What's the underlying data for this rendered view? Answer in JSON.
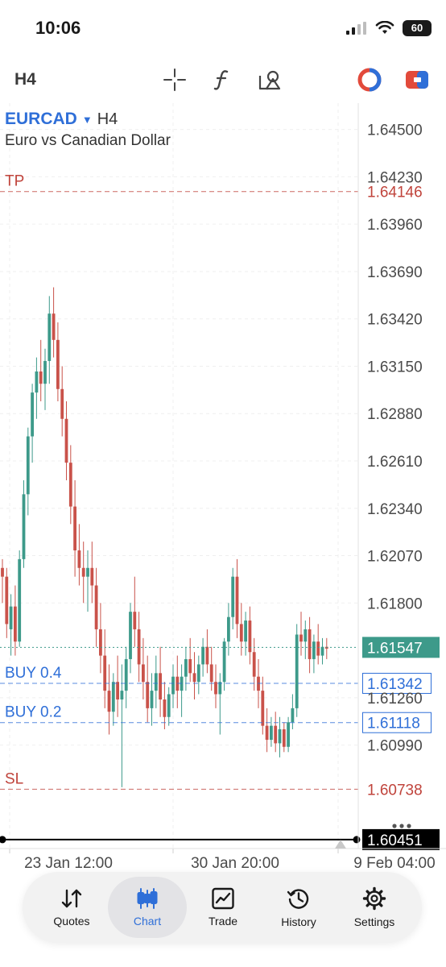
{
  "status_bar": {
    "time": "10:06",
    "battery": "60"
  },
  "toolbar": {
    "timeframe": "H4",
    "icons": [
      "crosshair-icon",
      "indicator-function-icon",
      "objects-icon",
      "signal-icon",
      "one-click-trading-icon"
    ]
  },
  "symbol": {
    "name": "EURCAD",
    "timeframe": "H4",
    "description": "Euro vs Canadian Dollar"
  },
  "chart_data": {
    "type": "candlestick",
    "ylim": [
      1.604,
      1.6465
    ],
    "price_ticks": [
      "1.64500",
      "1.64230",
      "1.63960",
      "1.63690",
      "1.63420",
      "1.63150",
      "1.62880",
      "1.62610",
      "1.62340",
      "1.62070",
      "1.61800",
      "1.61260",
      "1.60990"
    ],
    "x_ticks": [
      "23 Jan 12:00",
      "30 Jan 20:00",
      "9 Feb 04:00"
    ],
    "levels": [
      {
        "label": "TP",
        "price": "1.64146",
        "color": "#c0443c"
      },
      {
        "label": "",
        "price": "1.61547",
        "color": "#3d9a8a"
      },
      {
        "label": "BUY 0.4",
        "price": "1.61342",
        "color": "#2f6fd8"
      },
      {
        "label": "BUY 0.2",
        "price": "1.61118",
        "color": "#2f6fd8"
      },
      {
        "label": "SL",
        "price": "1.60738",
        "color": "#c0443c"
      },
      {
        "label": "",
        "price": "1.60451",
        "color": "#000000"
      }
    ],
    "candles": [
      [
        1.62,
        1.6205,
        1.618,
        1.6195
      ],
      [
        1.6195,
        1.62,
        1.616,
        1.6168
      ],
      [
        1.6165,
        1.6185,
        1.615,
        1.6178
      ],
      [
        1.6178,
        1.619,
        1.615,
        1.6158
      ],
      [
        1.6158,
        1.621,
        1.6155,
        1.6205
      ],
      [
        1.6205,
        1.625,
        1.62,
        1.6242
      ],
      [
        1.6242,
        1.628,
        1.623,
        1.6275
      ],
      [
        1.6275,
        1.6305,
        1.626,
        1.63
      ],
      [
        1.63,
        1.632,
        1.6285,
        1.6312
      ],
      [
        1.6312,
        1.633,
        1.6295,
        1.6305
      ],
      [
        1.6305,
        1.6325,
        1.629,
        1.6318
      ],
      [
        1.6318,
        1.6355,
        1.6305,
        1.6345
      ],
      [
        1.6345,
        1.636,
        1.632,
        1.633
      ],
      [
        1.633,
        1.634,
        1.6295,
        1.6302
      ],
      [
        1.6302,
        1.6315,
        1.6275,
        1.6285
      ],
      [
        1.6285,
        1.6295,
        1.625,
        1.626
      ],
      [
        1.626,
        1.627,
        1.6225,
        1.6235
      ],
      [
        1.6235,
        1.625,
        1.6195,
        1.621
      ],
      [
        1.621,
        1.6225,
        1.619,
        1.62
      ],
      [
        1.62,
        1.6215,
        1.618,
        1.6195
      ],
      [
        1.6195,
        1.621,
        1.6175,
        1.62
      ],
      [
        1.62,
        1.6215,
        1.618,
        1.619
      ],
      [
        1.619,
        1.62,
        1.6155,
        1.6165
      ],
      [
        1.6165,
        1.618,
        1.614,
        1.615
      ],
      [
        1.615,
        1.6165,
        1.612,
        1.613
      ],
      [
        1.613,
        1.6145,
        1.6105,
        1.6118
      ],
      [
        1.6118,
        1.614,
        1.611,
        1.6135
      ],
      [
        1.6135,
        1.615,
        1.6115,
        1.6125
      ],
      [
        1.6125,
        1.6145,
        1.6075,
        1.613
      ],
      [
        1.613,
        1.6155,
        1.612,
        1.6148
      ],
      [
        1.6148,
        1.618,
        1.614,
        1.6175
      ],
      [
        1.6175,
        1.6195,
        1.6155,
        1.6165
      ],
      [
        1.6165,
        1.6175,
        1.6135,
        1.6145
      ],
      [
        1.6145,
        1.616,
        1.6125,
        1.6135
      ],
      [
        1.6135,
        1.615,
        1.6112,
        1.612
      ],
      [
        1.612,
        1.614,
        1.611,
        1.613
      ],
      [
        1.613,
        1.615,
        1.612,
        1.614
      ],
      [
        1.614,
        1.6155,
        1.6115,
        1.6125
      ],
      [
        1.6125,
        1.6135,
        1.6108,
        1.6115
      ],
      [
        1.6115,
        1.6132,
        1.611,
        1.6128
      ],
      [
        1.6128,
        1.6145,
        1.612,
        1.6138
      ],
      [
        1.6138,
        1.615,
        1.612,
        1.613
      ],
      [
        1.613,
        1.6145,
        1.6115,
        1.6138
      ],
      [
        1.6138,
        1.6155,
        1.613,
        1.6148
      ],
      [
        1.6148,
        1.616,
        1.6135,
        1.614
      ],
      [
        1.614,
        1.6152,
        1.6125,
        1.6135
      ],
      [
        1.6135,
        1.615,
        1.6128,
        1.6145
      ],
      [
        1.6145,
        1.616,
        1.6138,
        1.6155
      ],
      [
        1.6155,
        1.6165,
        1.614,
        1.6145
      ],
      [
        1.6145,
        1.6155,
        1.613,
        1.6135
      ],
      [
        1.6135,
        1.6145,
        1.612,
        1.6128
      ],
      [
        1.6128,
        1.614,
        1.6105,
        1.6135
      ],
      [
        1.6135,
        1.616,
        1.613,
        1.6158
      ],
      [
        1.6158,
        1.618,
        1.615,
        1.6172
      ],
      [
        1.6172,
        1.62,
        1.6165,
        1.6195
      ],
      [
        1.6195,
        1.6205,
        1.616,
        1.6168
      ],
      [
        1.6168,
        1.618,
        1.615,
        1.6158
      ],
      [
        1.6158,
        1.6175,
        1.615,
        1.617
      ],
      [
        1.617,
        1.6178,
        1.6145,
        1.6152
      ],
      [
        1.6152,
        1.616,
        1.613,
        1.6138
      ],
      [
        1.6138,
        1.6148,
        1.612,
        1.613
      ],
      [
        1.613,
        1.6138,
        1.6105,
        1.611
      ],
      [
        1.611,
        1.612,
        1.6095,
        1.6102
      ],
      [
        1.6102,
        1.6115,
        1.6098,
        1.611
      ],
      [
        1.611,
        1.6118,
        1.6095,
        1.61
      ],
      [
        1.61,
        1.6115,
        1.6092,
        1.6108
      ],
      [
        1.6108,
        1.6112,
        1.6095,
        1.6098
      ],
      [
        1.6098,
        1.6115,
        1.6095,
        1.6112
      ],
      [
        1.6112,
        1.6128,
        1.6108,
        1.612
      ],
      [
        1.612,
        1.6168,
        1.6115,
        1.6162
      ],
      [
        1.6162,
        1.6175,
        1.615,
        1.6158
      ],
      [
        1.6158,
        1.617,
        1.6148,
        1.6165
      ],
      [
        1.6165,
        1.6172,
        1.614,
        1.6148
      ],
      [
        1.6148,
        1.6162,
        1.614,
        1.6158
      ],
      [
        1.6158,
        1.6168,
        1.6145,
        1.615
      ],
      [
        1.615,
        1.616,
        1.6145,
        1.6155
      ],
      [
        1.6155,
        1.616,
        1.6148,
        1.6154
      ]
    ]
  },
  "tabs": [
    {
      "id": "quotes",
      "label": "Quotes",
      "icon": "quotes-arrows-icon",
      "active": false
    },
    {
      "id": "chart",
      "label": "Chart",
      "icon": "candlestick-icon",
      "active": true
    },
    {
      "id": "trade",
      "label": "Trade",
      "icon": "trade-chart-icon",
      "active": false
    },
    {
      "id": "history",
      "label": "History",
      "icon": "history-clock-icon",
      "active": false
    },
    {
      "id": "settings",
      "label": "Settings",
      "icon": "settings-gear-icon",
      "active": false
    }
  ],
  "colors": {
    "bull": "#3d9a8a",
    "bear": "#c9524a",
    "accent": "#2f6fd8"
  }
}
